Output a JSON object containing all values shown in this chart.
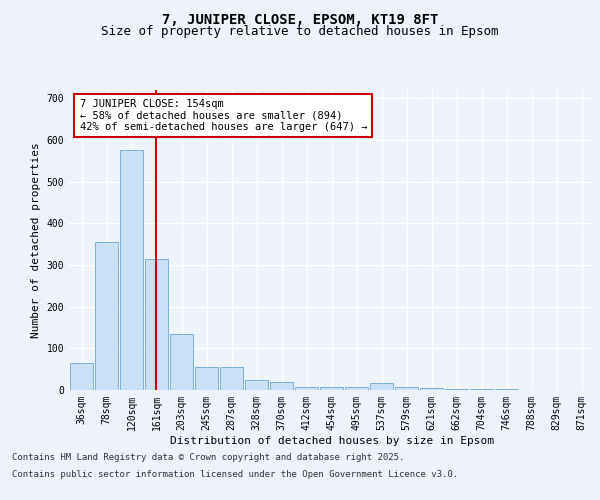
{
  "title1": "7, JUNIPER CLOSE, EPSOM, KT19 8FT",
  "title2": "Size of property relative to detached houses in Epsom",
  "xlabel": "Distribution of detached houses by size in Epsom",
  "ylabel": "Number of detached properties",
  "categories": [
    "36sqm",
    "78sqm",
    "120sqm",
    "161sqm",
    "203sqm",
    "245sqm",
    "287sqm",
    "328sqm",
    "370sqm",
    "412sqm",
    "454sqm",
    "495sqm",
    "537sqm",
    "579sqm",
    "621sqm",
    "662sqm",
    "704sqm",
    "746sqm",
    "788sqm",
    "829sqm",
    "871sqm"
  ],
  "values": [
    65,
    355,
    575,
    315,
    135,
    55,
    55,
    25,
    20,
    8,
    8,
    8,
    18,
    7,
    4,
    3,
    3,
    2,
    1,
    1,
    1
  ],
  "bar_color": "#cce0f5",
  "bar_edge_color": "#7ab0d8",
  "vline_color": "#cc0000",
  "annotation_text": "7 JUNIPER CLOSE: 154sqm\n← 58% of detached houses are smaller (894)\n42% of semi-detached houses are larger (647) →",
  "annotation_box_color": "#ffffff",
  "annotation_box_edge_color": "#cc0000",
  "ylim": [
    0,
    720
  ],
  "yticks": [
    0,
    100,
    200,
    300,
    400,
    500,
    600,
    700
  ],
  "background_color": "#eef2fb",
  "grid_color": "#ffffff",
  "footer_line1": "Contains HM Land Registry data © Crown copyright and database right 2025.",
  "footer_line2": "Contains public sector information licensed under the Open Government Licence v3.0.",
  "title_fontsize": 10,
  "subtitle_fontsize": 9,
  "axis_label_fontsize": 8,
  "tick_fontsize": 7,
  "annotation_fontsize": 7.5,
  "footer_fontsize": 6.5
}
